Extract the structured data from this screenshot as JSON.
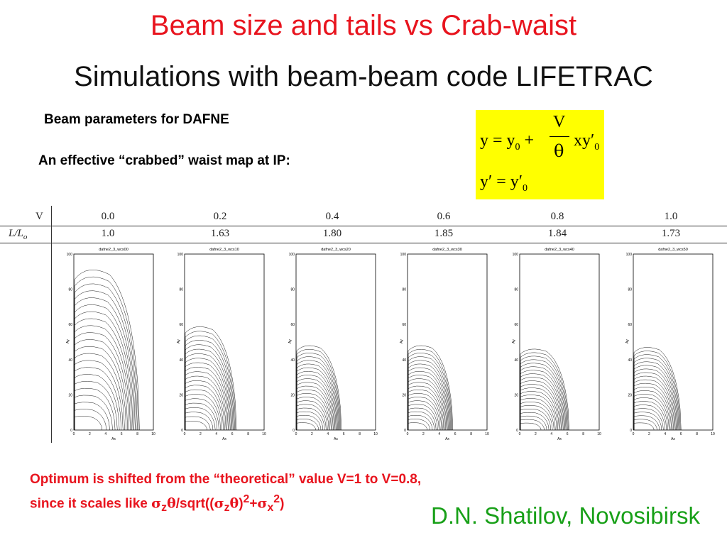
{
  "title": "Beam size and tails vs Crab-waist",
  "subtitle": "Simulations with beam-beam code LIFETRAC",
  "params_label": "Beam parameters for DAFNE",
  "crab_map_label": "An effective “crabbed” waist map at IP:",
  "formula": {
    "line1_lhs": "y = y",
    "sub0": "0",
    "plus": " +",
    "frac_num": "V",
    "frac_den": "θ",
    "line1_rhs": "xy′",
    "line2": "y′ = y′"
  },
  "table": {
    "row1_label": "V",
    "row2_label": "L/L",
    "row2_label_sub": "o",
    "v_values": [
      "0.0",
      "0.2",
      "0.4",
      "0.6",
      "0.8",
      "1.0"
    ],
    "ratio_values": [
      "1.0",
      "1.63",
      "1.80",
      "1.85",
      "1.84",
      "1.73"
    ],
    "plot_titles": [
      "dafne2_3_wcs00",
      "dafne2_3_wcs10",
      "dafne2_3_wcs20",
      "dafne2_3_wcs30",
      "dafne2_3_wcs40",
      "dafne2_3_wcs50"
    ],
    "x_axis_label": "Ax",
    "y_axis_label": "Ay",
    "x_ticks": [
      "0",
      "2",
      "4",
      "6",
      "8",
      "10"
    ],
    "y_ticks": [
      "0",
      "20",
      "40",
      "60",
      "80",
      "100"
    ]
  },
  "note": {
    "line1": "Optimum is shifted from the “theoretical” value V=1 to V=0.8,",
    "line2_prefix": "since it scales like ",
    "sigma": "σ",
    "sub_z": "z",
    "theta": "θ",
    "mid": "/sqrt((",
    "close_paren": ")",
    "sup2": "2",
    "plus": "+",
    "sub_x": "x",
    "end": ")"
  },
  "author": "D.N. Shatilov, Novosibirsk",
  "colors": {
    "title": "#e8141e",
    "note": "#e8141e",
    "author": "#18a018",
    "formula_bg": "#ffff00"
  }
}
